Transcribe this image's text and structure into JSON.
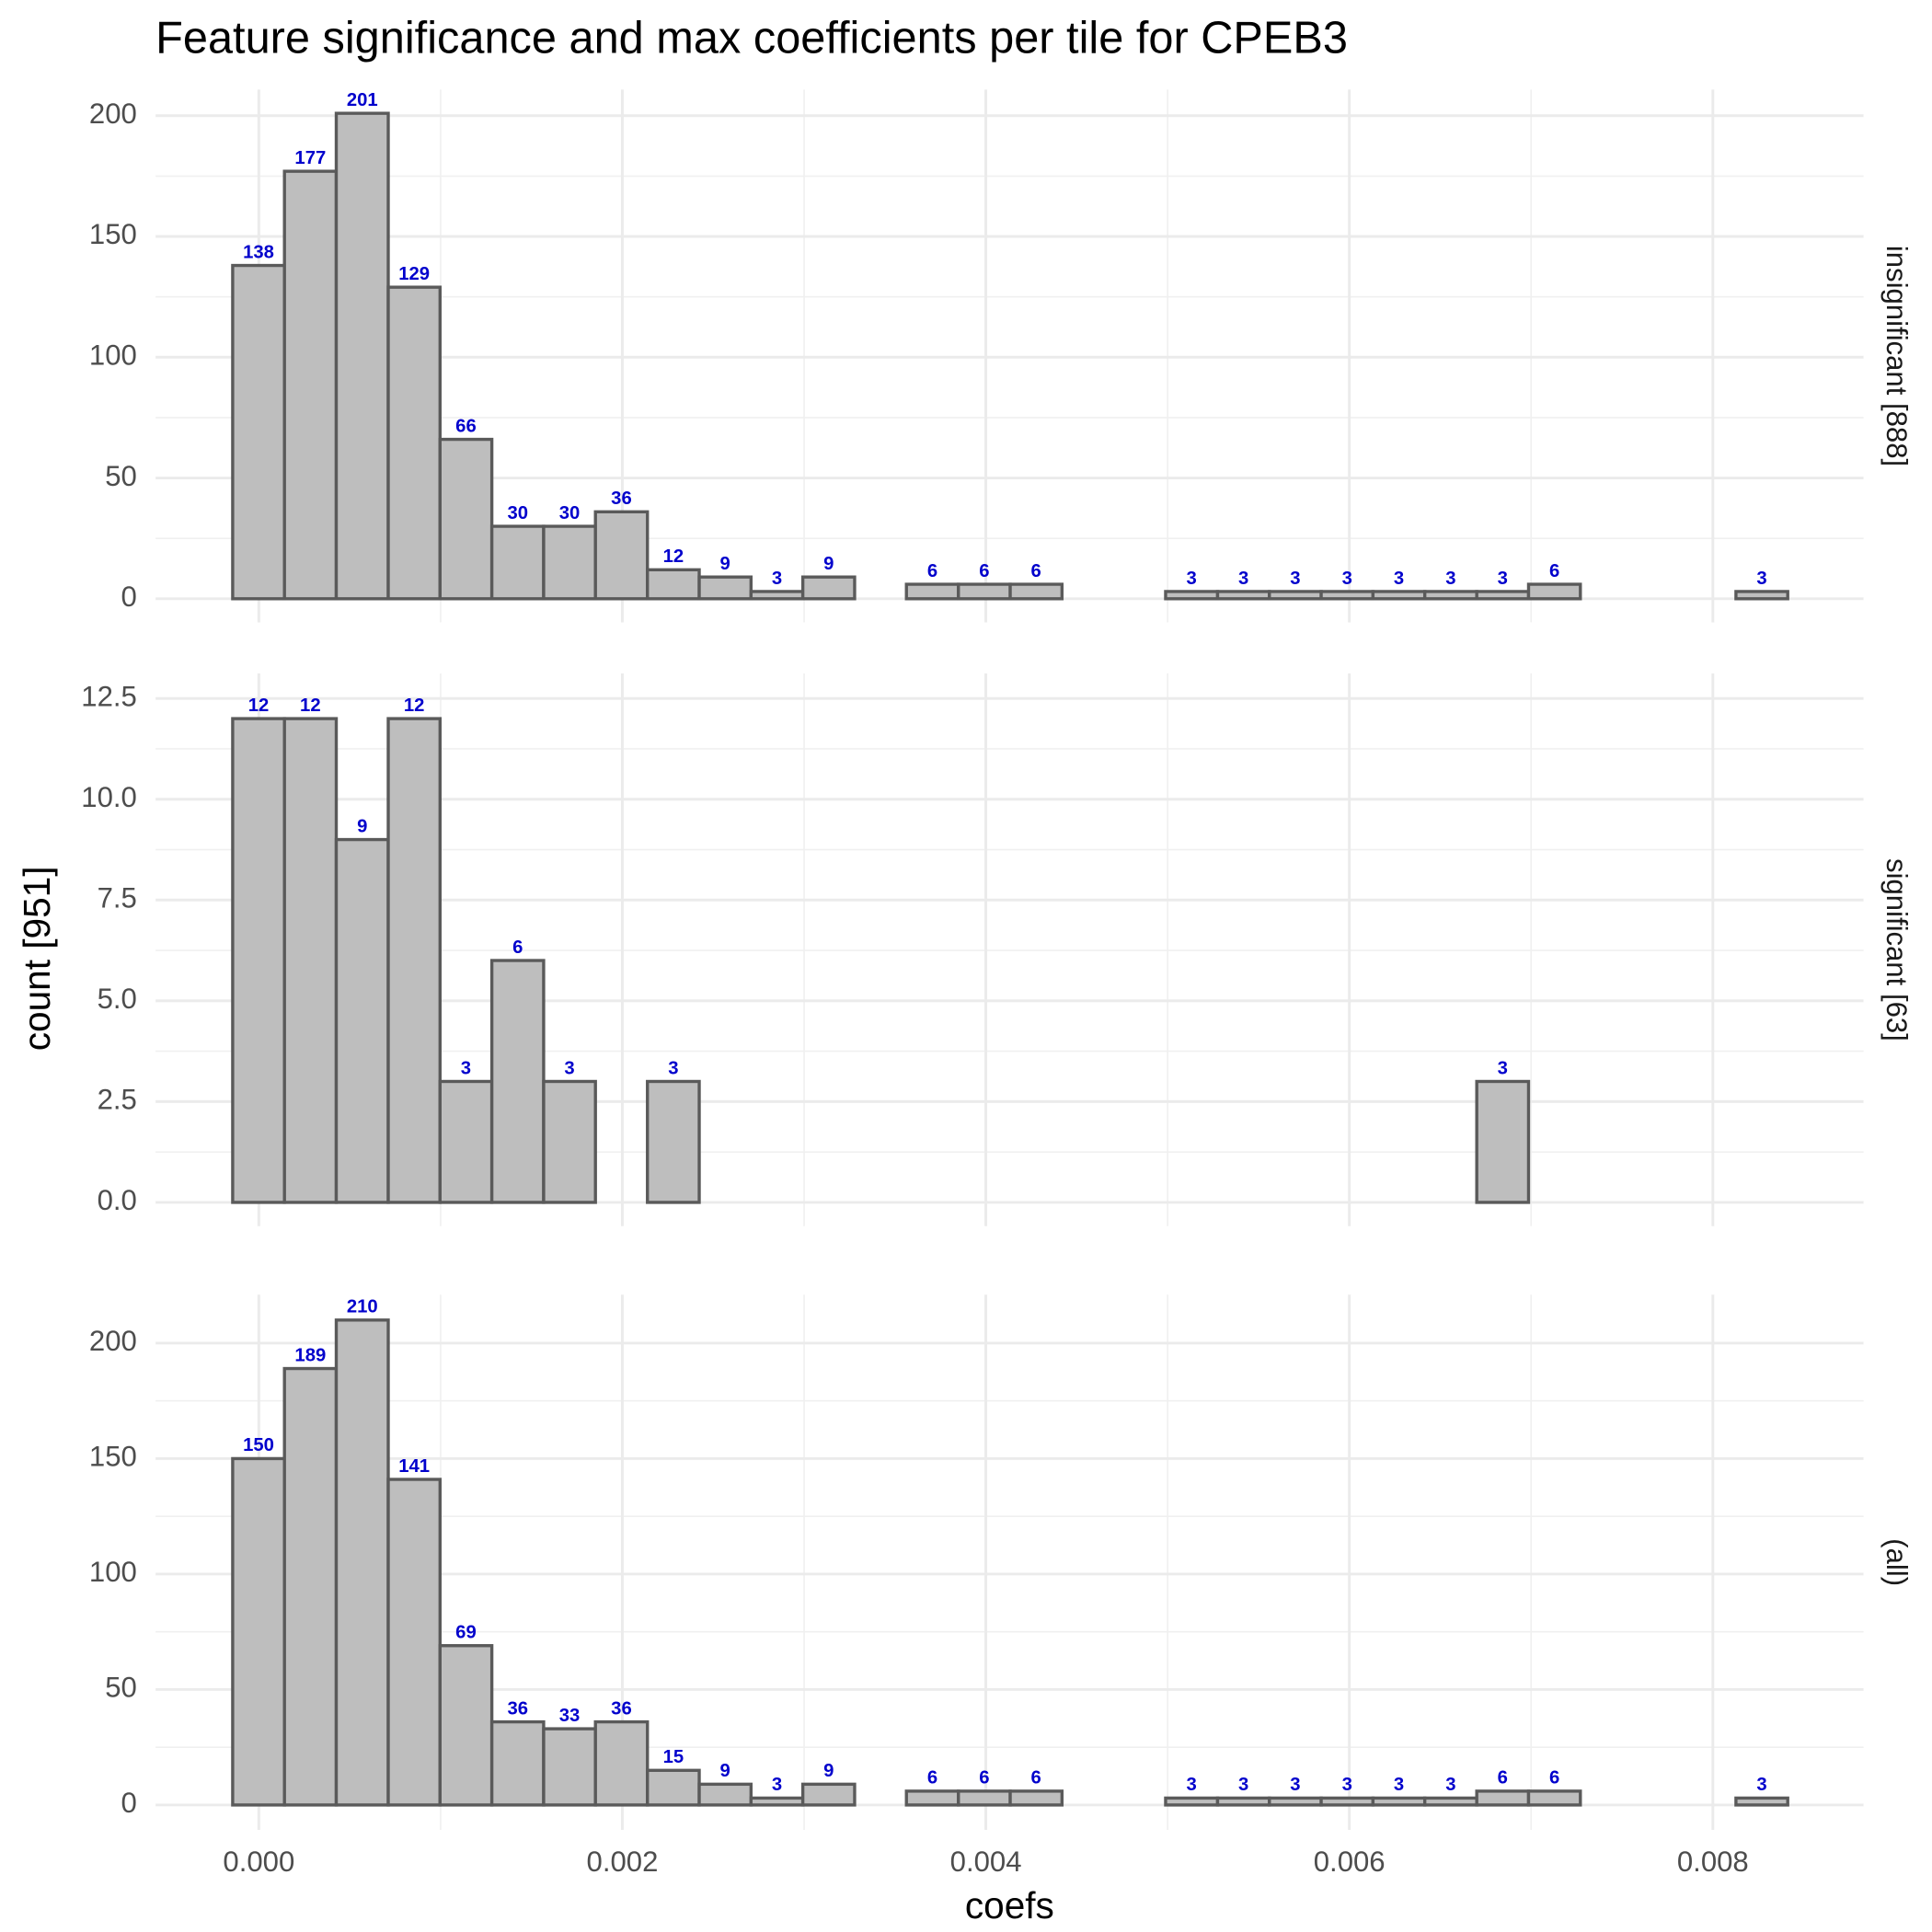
{
  "chart_data": {
    "type": "histogram",
    "title": "Feature significance and max coefficients per tile for CPEB3",
    "x_label": "coefs",
    "y_label": "count [951]",
    "bins": [
      -0.000144,
      0.000141,
      0.000426,
      0.000712,
      0.000997,
      0.001282,
      0.001567,
      0.001852,
      0.002138,
      0.002423,
      0.002708,
      0.002993,
      0.003278,
      0.003563,
      0.003849,
      0.004134,
      0.004419,
      0.004704,
      0.004989,
      0.005275,
      0.00556,
      0.005845,
      0.00613,
      0.006415,
      0.006701,
      0.006986,
      0.007271,
      0.007556,
      0.007841,
      0.008127,
      0.008412
    ],
    "xlim": [
      -0.000568,
      0.008829
    ],
    "xticks": [
      {
        "value": 0,
        "label": "0.000"
      },
      0.002,
      0.004,
      0.006,
      0.008
    ],
    "color": "#bebebe",
    "edge_color": "#5a5a5a",
    "label_color": "#0000cc",
    "grid": true,
    "panels": [
      {
        "label": "insignificant [888]",
        "values": [
          138,
          177,
          201,
          129,
          66,
          30,
          30,
          36,
          12,
          9,
          3,
          9,
          0,
          6,
          6,
          6,
          0,
          0,
          3,
          3,
          3,
          3,
          3,
          3,
          3,
          6,
          0,
          0,
          0,
          3
        ],
        "ylim": [
          -9.8,
          210.8
        ],
        "yticks": [
          0,
          50,
          100,
          150,
          200
        ]
      },
      {
        "label": "significant [63]",
        "values": [
          12,
          12,
          9,
          12,
          3,
          6,
          3,
          0,
          3,
          0,
          0,
          0,
          0,
          0,
          0,
          0,
          0,
          0,
          0,
          0,
          0,
          0,
          0,
          0,
          3,
          0,
          0,
          0,
          0,
          0
        ],
        "ylim": [
          -0.59,
          13.12
        ],
        "yticks": [
          {
            "value": 0,
            "label": "0.0"
          },
          2.5,
          {
            "value": 5,
            "label": "5.0"
          },
          7.5,
          {
            "value": 10,
            "label": "10.0"
          },
          12.5
        ]
      },
      {
        "label": "(all)",
        "values": [
          150,
          189,
          210,
          141,
          69,
          36,
          33,
          36,
          15,
          9,
          3,
          9,
          0,
          6,
          6,
          6,
          0,
          0,
          3,
          3,
          3,
          3,
          3,
          3,
          6,
          6,
          0,
          0,
          0,
          3
        ],
        "ylim": [
          -10.8,
          221
        ],
        "yticks": [
          0,
          50,
          100,
          150,
          200
        ]
      }
    ]
  }
}
